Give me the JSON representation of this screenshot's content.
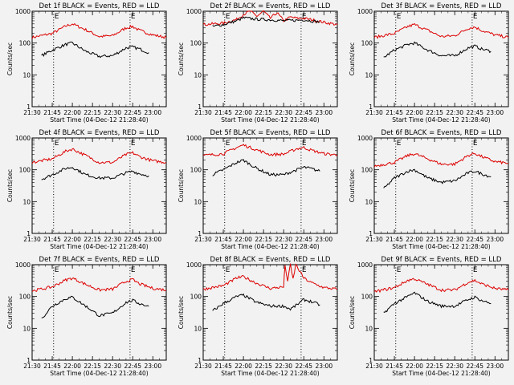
{
  "figure": {
    "xlabel": "Start Time (04-Dec-12 21:28:40)",
    "ylabel": "Counts/sec",
    "xticks": [
      "21:30",
      "21:45",
      "22:00",
      "22:15",
      "22:30",
      "22:45",
      "23:00"
    ],
    "yticks": [
      "1",
      "10",
      "100",
      "1000"
    ],
    "event_marker": "E",
    "colors": {
      "events": "#000000",
      "lld": "#dd0000",
      "background": "#f2f2f2"
    }
  },
  "chart_data": [
    {
      "type": "line",
      "title": "Det 1f BLACK = Events, RED = LLD",
      "xlim": [
        "21:30",
        "23:10"
      ],
      "ylim": [
        1,
        1000
      ],
      "yscale": "log",
      "grid": false,
      "markers": [
        "21:46",
        "22:43"
      ],
      "series": [
        {
          "color": "#dd0000",
          "x": [
            "21:30",
            "21:45",
            "21:55",
            "22:00",
            "22:10",
            "22:20",
            "22:30",
            "22:40",
            "22:45",
            "22:50",
            "23:00",
            "23:10"
          ],
          "values": [
            150,
            200,
            340,
            400,
            260,
            160,
            170,
            300,
            330,
            250,
            180,
            150
          ]
        },
        {
          "color": "#000000",
          "x": [
            "21:37",
            "21:45",
            "21:55",
            "22:00",
            "22:10",
            "22:20",
            "22:30",
            "22:40",
            "22:45",
            "22:50",
            "22:57"
          ],
          "values": [
            40,
            60,
            90,
            100,
            55,
            38,
            40,
            70,
            75,
            65,
            50
          ]
        }
      ]
    },
    {
      "type": "line",
      "title": "Det 2f BLACK = Events, RED = LLD",
      "xlim": [
        "21:30",
        "23:10"
      ],
      "ylim": [
        1,
        1000
      ],
      "yscale": "log",
      "grid": false,
      "markers": [
        "21:46",
        "22:43"
      ],
      "series": [
        {
          "color": "#dd0000",
          "x": [
            "21:30",
            "21:45",
            "21:55",
            "22:00",
            "22:05",
            "22:10",
            "22:15",
            "22:20",
            "22:25",
            "22:30",
            "22:35",
            "22:40",
            "22:45",
            "22:50",
            "23:00",
            "23:10"
          ],
          "values": [
            380,
            420,
            550,
            800,
            1000,
            700,
            1000,
            600,
            900,
            500,
            650,
            600,
            600,
            550,
            450,
            380
          ]
        },
        {
          "color": "#000000",
          "x": [
            "21:37",
            "21:45",
            "21:55",
            "22:00",
            "22:10",
            "22:20",
            "22:30",
            "22:40",
            "22:45",
            "22:50",
            "22:57"
          ],
          "values": [
            330,
            380,
            500,
            620,
            560,
            540,
            500,
            520,
            540,
            500,
            460
          ]
        }
      ]
    },
    {
      "type": "line",
      "title": "Det 3f BLACK = Events, RED = LLD",
      "xlim": [
        "21:30",
        "23:10"
      ],
      "ylim": [
        1,
        1000
      ],
      "yscale": "log",
      "grid": false,
      "markers": [
        "21:46",
        "22:43"
      ],
      "series": [
        {
          "color": "#dd0000",
          "x": [
            "21:30",
            "21:45",
            "21:55",
            "22:00",
            "22:10",
            "22:20",
            "22:30",
            "22:40",
            "22:45",
            "22:50",
            "23:00",
            "23:10"
          ],
          "values": [
            150,
            200,
            330,
            380,
            250,
            160,
            170,
            290,
            320,
            250,
            180,
            150
          ]
        },
        {
          "color": "#000000",
          "x": [
            "21:37",
            "21:45",
            "21:55",
            "22:00",
            "22:10",
            "22:20",
            "22:30",
            "22:40",
            "22:45",
            "22:50",
            "22:57"
          ],
          "values": [
            35,
            60,
            90,
            100,
            60,
            40,
            40,
            70,
            80,
            65,
            55
          ]
        }
      ]
    },
    {
      "type": "line",
      "title": "Det 4f BLACK = Events, RED = LLD",
      "xlim": [
        "21:30",
        "23:10"
      ],
      "ylim": [
        1,
        1000
      ],
      "yscale": "log",
      "grid": false,
      "markers": [
        "21:46",
        "22:43"
      ],
      "series": [
        {
          "color": "#dd0000",
          "x": [
            "21:30",
            "21:45",
            "21:55",
            "22:00",
            "22:10",
            "22:20",
            "22:30",
            "22:40",
            "22:45",
            "22:50",
            "23:00",
            "23:10"
          ],
          "values": [
            170,
            220,
            380,
            450,
            280,
            170,
            170,
            300,
            340,
            260,
            190,
            170
          ]
        },
        {
          "color": "#000000",
          "x": [
            "21:37",
            "21:45",
            "21:55",
            "22:00",
            "22:10",
            "22:20",
            "22:30",
            "22:40",
            "22:45",
            "22:50",
            "22:57"
          ],
          "values": [
            50,
            70,
            110,
            120,
            70,
            55,
            55,
            80,
            90,
            75,
            65
          ]
        }
      ]
    },
    {
      "type": "line",
      "title": "Det 5f BLACK = Events, RED = LLD",
      "xlim": [
        "21:30",
        "23:10"
      ],
      "ylim": [
        1,
        1000
      ],
      "yscale": "log",
      "grid": false,
      "markers": [
        "21:46",
        "22:43"
      ],
      "series": [
        {
          "color": "#dd0000",
          "x": [
            "21:30",
            "21:45",
            "21:55",
            "22:00",
            "22:10",
            "22:20",
            "22:30",
            "22:40",
            "22:45",
            "22:50",
            "23:00",
            "23:10"
          ],
          "values": [
            280,
            320,
            500,
            600,
            420,
            300,
            310,
            460,
            500,
            420,
            320,
            290
          ]
        },
        {
          "color": "#000000",
          "x": [
            "21:37",
            "21:45",
            "21:55",
            "22:00",
            "22:10",
            "22:20",
            "22:30",
            "22:40",
            "22:45",
            "22:50",
            "22:57"
          ],
          "values": [
            70,
            100,
            170,
            200,
            110,
            70,
            70,
            100,
            120,
            110,
            90
          ]
        }
      ]
    },
    {
      "type": "line",
      "title": "Det 6f BLACK = Events, RED = LLD",
      "xlim": [
        "21:30",
        "23:10"
      ],
      "ylim": [
        1,
        1000
      ],
      "yscale": "log",
      "grid": false,
      "markers": [
        "21:46",
        "22:43"
      ],
      "series": [
        {
          "color": "#dd0000",
          "x": [
            "21:30",
            "21:45",
            "21:55",
            "22:00",
            "22:10",
            "22:20",
            "22:30",
            "22:40",
            "22:45",
            "22:50",
            "23:00",
            "23:10"
          ],
          "values": [
            130,
            170,
            280,
            320,
            220,
            150,
            150,
            280,
            330,
            260,
            180,
            160
          ]
        },
        {
          "color": "#000000",
          "x": [
            "21:37",
            "21:45",
            "21:55",
            "22:00",
            "22:10",
            "22:20",
            "22:30",
            "22:40",
            "22:45",
            "22:50",
            "22:57"
          ],
          "values": [
            25,
            55,
            90,
            100,
            55,
            40,
            45,
            80,
            90,
            75,
            60
          ]
        }
      ]
    },
    {
      "type": "line",
      "title": "Det 7f BLACK = Events, RED = LLD",
      "xlim": [
        "21:30",
        "23:10"
      ],
      "ylim": [
        1,
        1000
      ],
      "yscale": "log",
      "grid": false,
      "markers": [
        "21:46",
        "22:43"
      ],
      "series": [
        {
          "color": "#dd0000",
          "x": [
            "21:30",
            "21:45",
            "21:55",
            "22:00",
            "22:10",
            "22:20",
            "22:30",
            "22:40",
            "22:45",
            "22:50",
            "23:00",
            "23:10"
          ],
          "values": [
            150,
            200,
            330,
            380,
            240,
            160,
            170,
            300,
            340,
            250,
            180,
            160
          ]
        },
        {
          "color": "#000000",
          "x": [
            "21:37",
            "21:45",
            "21:55",
            "22:00",
            "22:10",
            "22:20",
            "22:30",
            "22:40",
            "22:45",
            "22:50",
            "22:57"
          ],
          "values": [
            20,
            50,
            85,
            95,
            50,
            25,
            30,
            65,
            75,
            60,
            50
          ]
        }
      ]
    },
    {
      "type": "line",
      "title": "Det 8f BLACK = Events, RED = LLD",
      "xlim": [
        "21:30",
        "23:10"
      ],
      "ylim": [
        1,
        1000
      ],
      "yscale": "log",
      "grid": false,
      "markers": [
        "21:46",
        "22:43"
      ],
      "series": [
        {
          "color": "#dd0000",
          "x": [
            "21:30",
            "21:45",
            "21:55",
            "22:00",
            "22:10",
            "22:20",
            "22:30",
            "22:31",
            "22:33",
            "22:35",
            "22:37",
            "22:39",
            "22:45",
            "22:50",
            "23:00",
            "23:10"
          ],
          "values": [
            170,
            220,
            380,
            420,
            260,
            180,
            200,
            1000,
            300,
            1000,
            350,
            1000,
            380,
            280,
            190,
            170
          ]
        },
        {
          "color": "#000000",
          "x": [
            "21:37",
            "21:45",
            "21:55",
            "22:00",
            "22:10",
            "22:20",
            "22:30",
            "22:35",
            "22:40",
            "22:45",
            "22:50",
            "22:57"
          ],
          "values": [
            35,
            60,
            100,
            110,
            65,
            50,
            50,
            40,
            55,
            80,
            70,
            55
          ]
        }
      ]
    },
    {
      "type": "line",
      "title": "Det 9f BLACK = Events, RED = LLD",
      "xlim": [
        "21:30",
        "23:10"
      ],
      "ylim": [
        1,
        1000
      ],
      "yscale": "log",
      "grid": false,
      "markers": [
        "21:46",
        "22:43"
      ],
      "series": [
        {
          "color": "#dd0000",
          "x": [
            "21:30",
            "21:45",
            "21:55",
            "22:00",
            "22:10",
            "22:20",
            "22:30",
            "22:40",
            "22:45",
            "22:50",
            "23:00",
            "23:10"
          ],
          "values": [
            140,
            190,
            320,
            360,
            240,
            160,
            160,
            280,
            320,
            250,
            180,
            160
          ]
        },
        {
          "color": "#000000",
          "x": [
            "21:37",
            "21:45",
            "21:55",
            "22:00",
            "22:10",
            "22:20",
            "22:30",
            "22:40",
            "22:45",
            "22:50",
            "22:57"
          ],
          "values": [
            30,
            60,
            100,
            130,
            70,
            50,
            50,
            80,
            95,
            75,
            60
          ]
        }
      ]
    }
  ]
}
